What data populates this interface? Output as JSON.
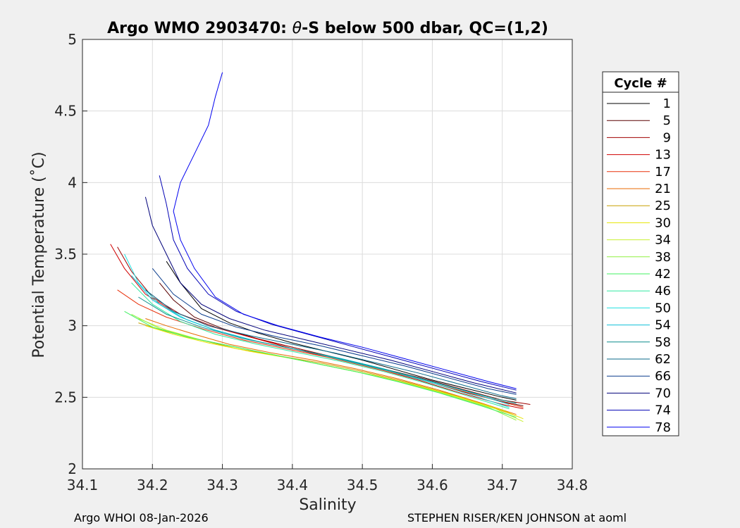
{
  "chart_data": {
    "type": "line",
    "title_parts": [
      "Argo WMO 2903470: ",
      "θ",
      "-S below 500 dbar,  QC=(1,2)"
    ],
    "xlabel": "Salinity",
    "ylabel": "Potential Temperature (˚C)",
    "xlim": [
      34.1,
      34.8
    ],
    "ylim": [
      2,
      5
    ],
    "xticks": [
      "34.1",
      "34.2",
      "34.3",
      "34.4",
      "34.5",
      "34.6",
      "34.7",
      "34.8"
    ],
    "yticks": [
      "2",
      "2.5",
      "3",
      "3.5",
      "4",
      "4.5",
      "5"
    ],
    "grid": true,
    "legend": {
      "title": "Cycle #",
      "placement": "right",
      "entries": [
        {
          "label": "1",
          "color": "#000000"
        },
        {
          "label": "5",
          "color": "#5a0000"
        },
        {
          "label": "9",
          "color": "#a00000"
        },
        {
          "label": "13",
          "color": "#d00000"
        },
        {
          "label": "17",
          "color": "#e8300a"
        },
        {
          "label": "21",
          "color": "#e86a00"
        },
        {
          "label": "25",
          "color": "#c8a000"
        },
        {
          "label": "30",
          "color": "#e6e600"
        },
        {
          "label": "34",
          "color": "#c8f030"
        },
        {
          "label": "38",
          "color": "#90f040"
        },
        {
          "label": "42",
          "color": "#40f060"
        },
        {
          "label": "46",
          "color": "#30e8a0"
        },
        {
          "label": "50",
          "color": "#20e0e0"
        },
        {
          "label": "54",
          "color": "#10c0d8"
        },
        {
          "label": "58",
          "color": "#0a8c8c"
        },
        {
          "label": "62",
          "color": "#0a6a8a"
        },
        {
          "label": "66",
          "color": "#0a3c8c"
        },
        {
          "label": "70",
          "color": "#00007a"
        },
        {
          "label": "74",
          "color": "#0000b4"
        },
        {
          "label": "78",
          "color": "#0000f0"
        }
      ]
    },
    "series": [
      {
        "name": "1",
        "color": "#000000",
        "points": [
          [
            34.22,
            3.45
          ],
          [
            34.24,
            3.3
          ],
          [
            34.27,
            3.12
          ],
          [
            34.31,
            3.02
          ],
          [
            34.35,
            2.95
          ],
          [
            34.4,
            2.88
          ],
          [
            34.45,
            2.82
          ],
          [
            34.5,
            2.76
          ],
          [
            34.55,
            2.69
          ],
          [
            34.6,
            2.62
          ],
          [
            34.65,
            2.56
          ],
          [
            34.7,
            2.5
          ],
          [
            34.72,
            2.48
          ]
        ]
      },
      {
        "name": "5",
        "color": "#5a0000",
        "points": [
          [
            34.21,
            3.3
          ],
          [
            34.23,
            3.18
          ],
          [
            34.26,
            3.06
          ],
          [
            34.3,
            2.98
          ],
          [
            34.35,
            2.91
          ],
          [
            34.4,
            2.85
          ],
          [
            34.45,
            2.79
          ],
          [
            34.5,
            2.73
          ],
          [
            34.55,
            2.67
          ],
          [
            34.6,
            2.6
          ],
          [
            34.65,
            2.53
          ],
          [
            34.7,
            2.47
          ],
          [
            34.73,
            2.44
          ]
        ]
      },
      {
        "name": "9",
        "color": "#a00000",
        "points": [
          [
            34.15,
            3.55
          ],
          [
            34.17,
            3.38
          ],
          [
            34.2,
            3.2
          ],
          [
            34.24,
            3.08
          ],
          [
            34.29,
            2.99
          ],
          [
            34.34,
            2.92
          ],
          [
            34.4,
            2.85
          ],
          [
            34.46,
            2.78
          ],
          [
            34.52,
            2.71
          ],
          [
            34.58,
            2.64
          ],
          [
            34.64,
            2.56
          ],
          [
            34.7,
            2.48
          ],
          [
            34.74,
            2.45
          ]
        ]
      },
      {
        "name": "13",
        "color": "#d00000",
        "points": [
          [
            34.14,
            3.57
          ],
          [
            34.16,
            3.4
          ],
          [
            34.19,
            3.22
          ],
          [
            34.23,
            3.1
          ],
          [
            34.28,
            3.0
          ],
          [
            34.34,
            2.92
          ],
          [
            34.4,
            2.84
          ],
          [
            34.46,
            2.77
          ],
          [
            34.52,
            2.7
          ],
          [
            34.58,
            2.62
          ],
          [
            34.64,
            2.53
          ],
          [
            34.7,
            2.45
          ],
          [
            34.73,
            2.42
          ]
        ]
      },
      {
        "name": "17",
        "color": "#e8300a",
        "points": [
          [
            34.15,
            3.25
          ],
          [
            34.18,
            3.15
          ],
          [
            34.22,
            3.06
          ],
          [
            34.27,
            2.98
          ],
          [
            34.33,
            2.9
          ],
          [
            34.39,
            2.84
          ],
          [
            34.45,
            2.78
          ],
          [
            34.51,
            2.71
          ],
          [
            34.57,
            2.64
          ],
          [
            34.63,
            2.56
          ],
          [
            34.69,
            2.48
          ],
          [
            34.73,
            2.43
          ]
        ]
      },
      {
        "name": "21",
        "color": "#e86a00",
        "points": [
          [
            34.19,
            3.05
          ],
          [
            34.22,
            3.0
          ],
          [
            34.26,
            2.94
          ],
          [
            34.31,
            2.87
          ],
          [
            34.37,
            2.81
          ],
          [
            34.43,
            2.76
          ],
          [
            34.49,
            2.7
          ],
          [
            34.55,
            2.63
          ],
          [
            34.61,
            2.55
          ],
          [
            34.67,
            2.46
          ],
          [
            34.72,
            2.38
          ]
        ]
      },
      {
        "name": "25",
        "color": "#c8a000",
        "points": [
          [
            34.18,
            3.02
          ],
          [
            34.22,
            2.96
          ],
          [
            34.27,
            2.9
          ],
          [
            34.32,
            2.84
          ],
          [
            34.38,
            2.79
          ],
          [
            34.44,
            2.74
          ],
          [
            34.5,
            2.68
          ],
          [
            34.56,
            2.61
          ],
          [
            34.62,
            2.53
          ],
          [
            34.68,
            2.44
          ],
          [
            34.72,
            2.37
          ]
        ]
      },
      {
        "name": "30",
        "color": "#e6e600",
        "points": [
          [
            34.19,
            3.0
          ],
          [
            34.23,
            2.94
          ],
          [
            34.28,
            2.88
          ],
          [
            34.34,
            2.82
          ],
          [
            34.4,
            2.77
          ],
          [
            34.46,
            2.71
          ],
          [
            34.52,
            2.65
          ],
          [
            34.58,
            2.58
          ],
          [
            34.64,
            2.5
          ],
          [
            34.7,
            2.41
          ],
          [
            34.73,
            2.35
          ]
        ]
      },
      {
        "name": "34",
        "color": "#c8f030",
        "points": [
          [
            34.18,
            3.05
          ],
          [
            34.22,
            2.97
          ],
          [
            34.27,
            2.9
          ],
          [
            34.33,
            2.84
          ],
          [
            34.39,
            2.78
          ],
          [
            34.45,
            2.72
          ],
          [
            34.51,
            2.66
          ],
          [
            34.57,
            2.59
          ],
          [
            34.63,
            2.51
          ],
          [
            34.69,
            2.42
          ],
          [
            34.73,
            2.33
          ]
        ]
      },
      {
        "name": "38",
        "color": "#90f040",
        "points": [
          [
            34.17,
            3.08
          ],
          [
            34.21,
            2.98
          ],
          [
            34.26,
            2.91
          ],
          [
            34.32,
            2.85
          ],
          [
            34.38,
            2.79
          ],
          [
            34.44,
            2.73
          ],
          [
            34.5,
            2.67
          ],
          [
            34.56,
            2.6
          ],
          [
            34.62,
            2.52
          ],
          [
            34.68,
            2.43
          ],
          [
            34.72,
            2.34
          ]
        ]
      },
      {
        "name": "42",
        "color": "#40f060",
        "points": [
          [
            34.16,
            3.1
          ],
          [
            34.2,
            2.99
          ],
          [
            34.25,
            2.92
          ],
          [
            34.31,
            2.86
          ],
          [
            34.37,
            2.8
          ],
          [
            34.43,
            2.74
          ],
          [
            34.49,
            2.68
          ],
          [
            34.55,
            2.61
          ],
          [
            34.61,
            2.53
          ],
          [
            34.67,
            2.44
          ],
          [
            34.72,
            2.36
          ]
        ]
      },
      {
        "name": "46",
        "color": "#30e8a0",
        "points": [
          [
            34.17,
            3.3
          ],
          [
            34.2,
            3.15
          ],
          [
            34.24,
            3.03
          ],
          [
            34.29,
            2.94
          ],
          [
            34.35,
            2.87
          ],
          [
            34.41,
            2.81
          ],
          [
            34.47,
            2.75
          ],
          [
            34.53,
            2.68
          ],
          [
            34.59,
            2.6
          ],
          [
            34.65,
            2.51
          ],
          [
            34.71,
            2.42
          ]
        ]
      },
      {
        "name": "50",
        "color": "#20e0e0",
        "points": [
          [
            34.16,
            3.5
          ],
          [
            34.18,
            3.3
          ],
          [
            34.21,
            3.15
          ],
          [
            34.25,
            3.04
          ],
          [
            34.3,
            2.95
          ],
          [
            34.36,
            2.88
          ],
          [
            34.42,
            2.82
          ],
          [
            34.48,
            2.75
          ],
          [
            34.54,
            2.68
          ],
          [
            34.6,
            2.6
          ],
          [
            34.66,
            2.51
          ],
          [
            34.71,
            2.43
          ]
        ]
      },
      {
        "name": "54",
        "color": "#10c0d8",
        "points": [
          [
            34.17,
            3.35
          ],
          [
            34.2,
            3.18
          ],
          [
            34.24,
            3.06
          ],
          [
            34.29,
            2.97
          ],
          [
            34.35,
            2.89
          ],
          [
            34.41,
            2.83
          ],
          [
            34.47,
            2.77
          ],
          [
            34.53,
            2.7
          ],
          [
            34.59,
            2.62
          ],
          [
            34.65,
            2.54
          ],
          [
            34.71,
            2.45
          ]
        ]
      },
      {
        "name": "58",
        "color": "#0a8c8c",
        "points": [
          [
            34.18,
            3.2
          ],
          [
            34.22,
            3.08
          ],
          [
            34.27,
            2.99
          ],
          [
            34.33,
            2.91
          ],
          [
            34.39,
            2.85
          ],
          [
            34.45,
            2.79
          ],
          [
            34.51,
            2.72
          ],
          [
            34.57,
            2.65
          ],
          [
            34.63,
            2.57
          ],
          [
            34.69,
            2.49
          ],
          [
            34.72,
            2.46
          ]
        ]
      },
      {
        "name": "62",
        "color": "#0a6a8a",
        "points": [
          [
            34.19,
            3.25
          ],
          [
            34.23,
            3.1
          ],
          [
            34.28,
            3.0
          ],
          [
            34.34,
            2.93
          ],
          [
            34.4,
            2.87
          ],
          [
            34.46,
            2.81
          ],
          [
            34.52,
            2.74
          ],
          [
            34.58,
            2.67
          ],
          [
            34.64,
            2.59
          ],
          [
            34.7,
            2.51
          ],
          [
            34.72,
            2.49
          ]
        ]
      },
      {
        "name": "66",
        "color": "#0a3c8c",
        "points": [
          [
            34.2,
            3.4
          ],
          [
            34.23,
            3.22
          ],
          [
            34.27,
            3.08
          ],
          [
            34.32,
            2.99
          ],
          [
            34.38,
            2.92
          ],
          [
            34.44,
            2.86
          ],
          [
            34.5,
            2.79
          ],
          [
            34.56,
            2.72
          ],
          [
            34.62,
            2.64
          ],
          [
            34.68,
            2.56
          ],
          [
            34.72,
            2.52
          ]
        ]
      },
      {
        "name": "70",
        "color": "#00007a",
        "points": [
          [
            34.19,
            3.9
          ],
          [
            34.2,
            3.7
          ],
          [
            34.22,
            3.5
          ],
          [
            34.24,
            3.3
          ],
          [
            34.27,
            3.15
          ],
          [
            34.31,
            3.05
          ],
          [
            34.36,
            2.97
          ],
          [
            34.42,
            2.9
          ],
          [
            34.48,
            2.83
          ],
          [
            34.54,
            2.76
          ],
          [
            34.6,
            2.68
          ],
          [
            34.66,
            2.6
          ],
          [
            34.72,
            2.53
          ]
        ]
      },
      {
        "name": "74",
        "color": "#0000b4",
        "points": [
          [
            34.21,
            4.05
          ],
          [
            34.22,
            3.85
          ],
          [
            34.23,
            3.6
          ],
          [
            34.25,
            3.4
          ],
          [
            34.28,
            3.22
          ],
          [
            34.32,
            3.1
          ],
          [
            34.37,
            3.01
          ],
          [
            34.43,
            2.93
          ],
          [
            34.49,
            2.85
          ],
          [
            34.55,
            2.77
          ],
          [
            34.61,
            2.69
          ],
          [
            34.67,
            2.61
          ],
          [
            34.72,
            2.55
          ]
        ]
      },
      {
        "name": "78",
        "color": "#0000f0",
        "points": [
          [
            34.3,
            4.77
          ],
          [
            34.29,
            4.6
          ],
          [
            34.28,
            4.4
          ],
          [
            34.26,
            4.2
          ],
          [
            34.24,
            4.0
          ],
          [
            34.23,
            3.8
          ],
          [
            34.24,
            3.6
          ],
          [
            34.26,
            3.4
          ],
          [
            34.29,
            3.2
          ],
          [
            34.33,
            3.08
          ],
          [
            34.38,
            3.0
          ],
          [
            34.44,
            2.92
          ],
          [
            34.5,
            2.85
          ],
          [
            34.56,
            2.77
          ],
          [
            34.62,
            2.69
          ],
          [
            34.68,
            2.61
          ],
          [
            34.72,
            2.56
          ]
        ]
      }
    ]
  },
  "footer": {
    "left": "Argo WHOI 08-Jan-2026",
    "right": "STEPHEN RISER/KEN JOHNSON at aoml"
  }
}
